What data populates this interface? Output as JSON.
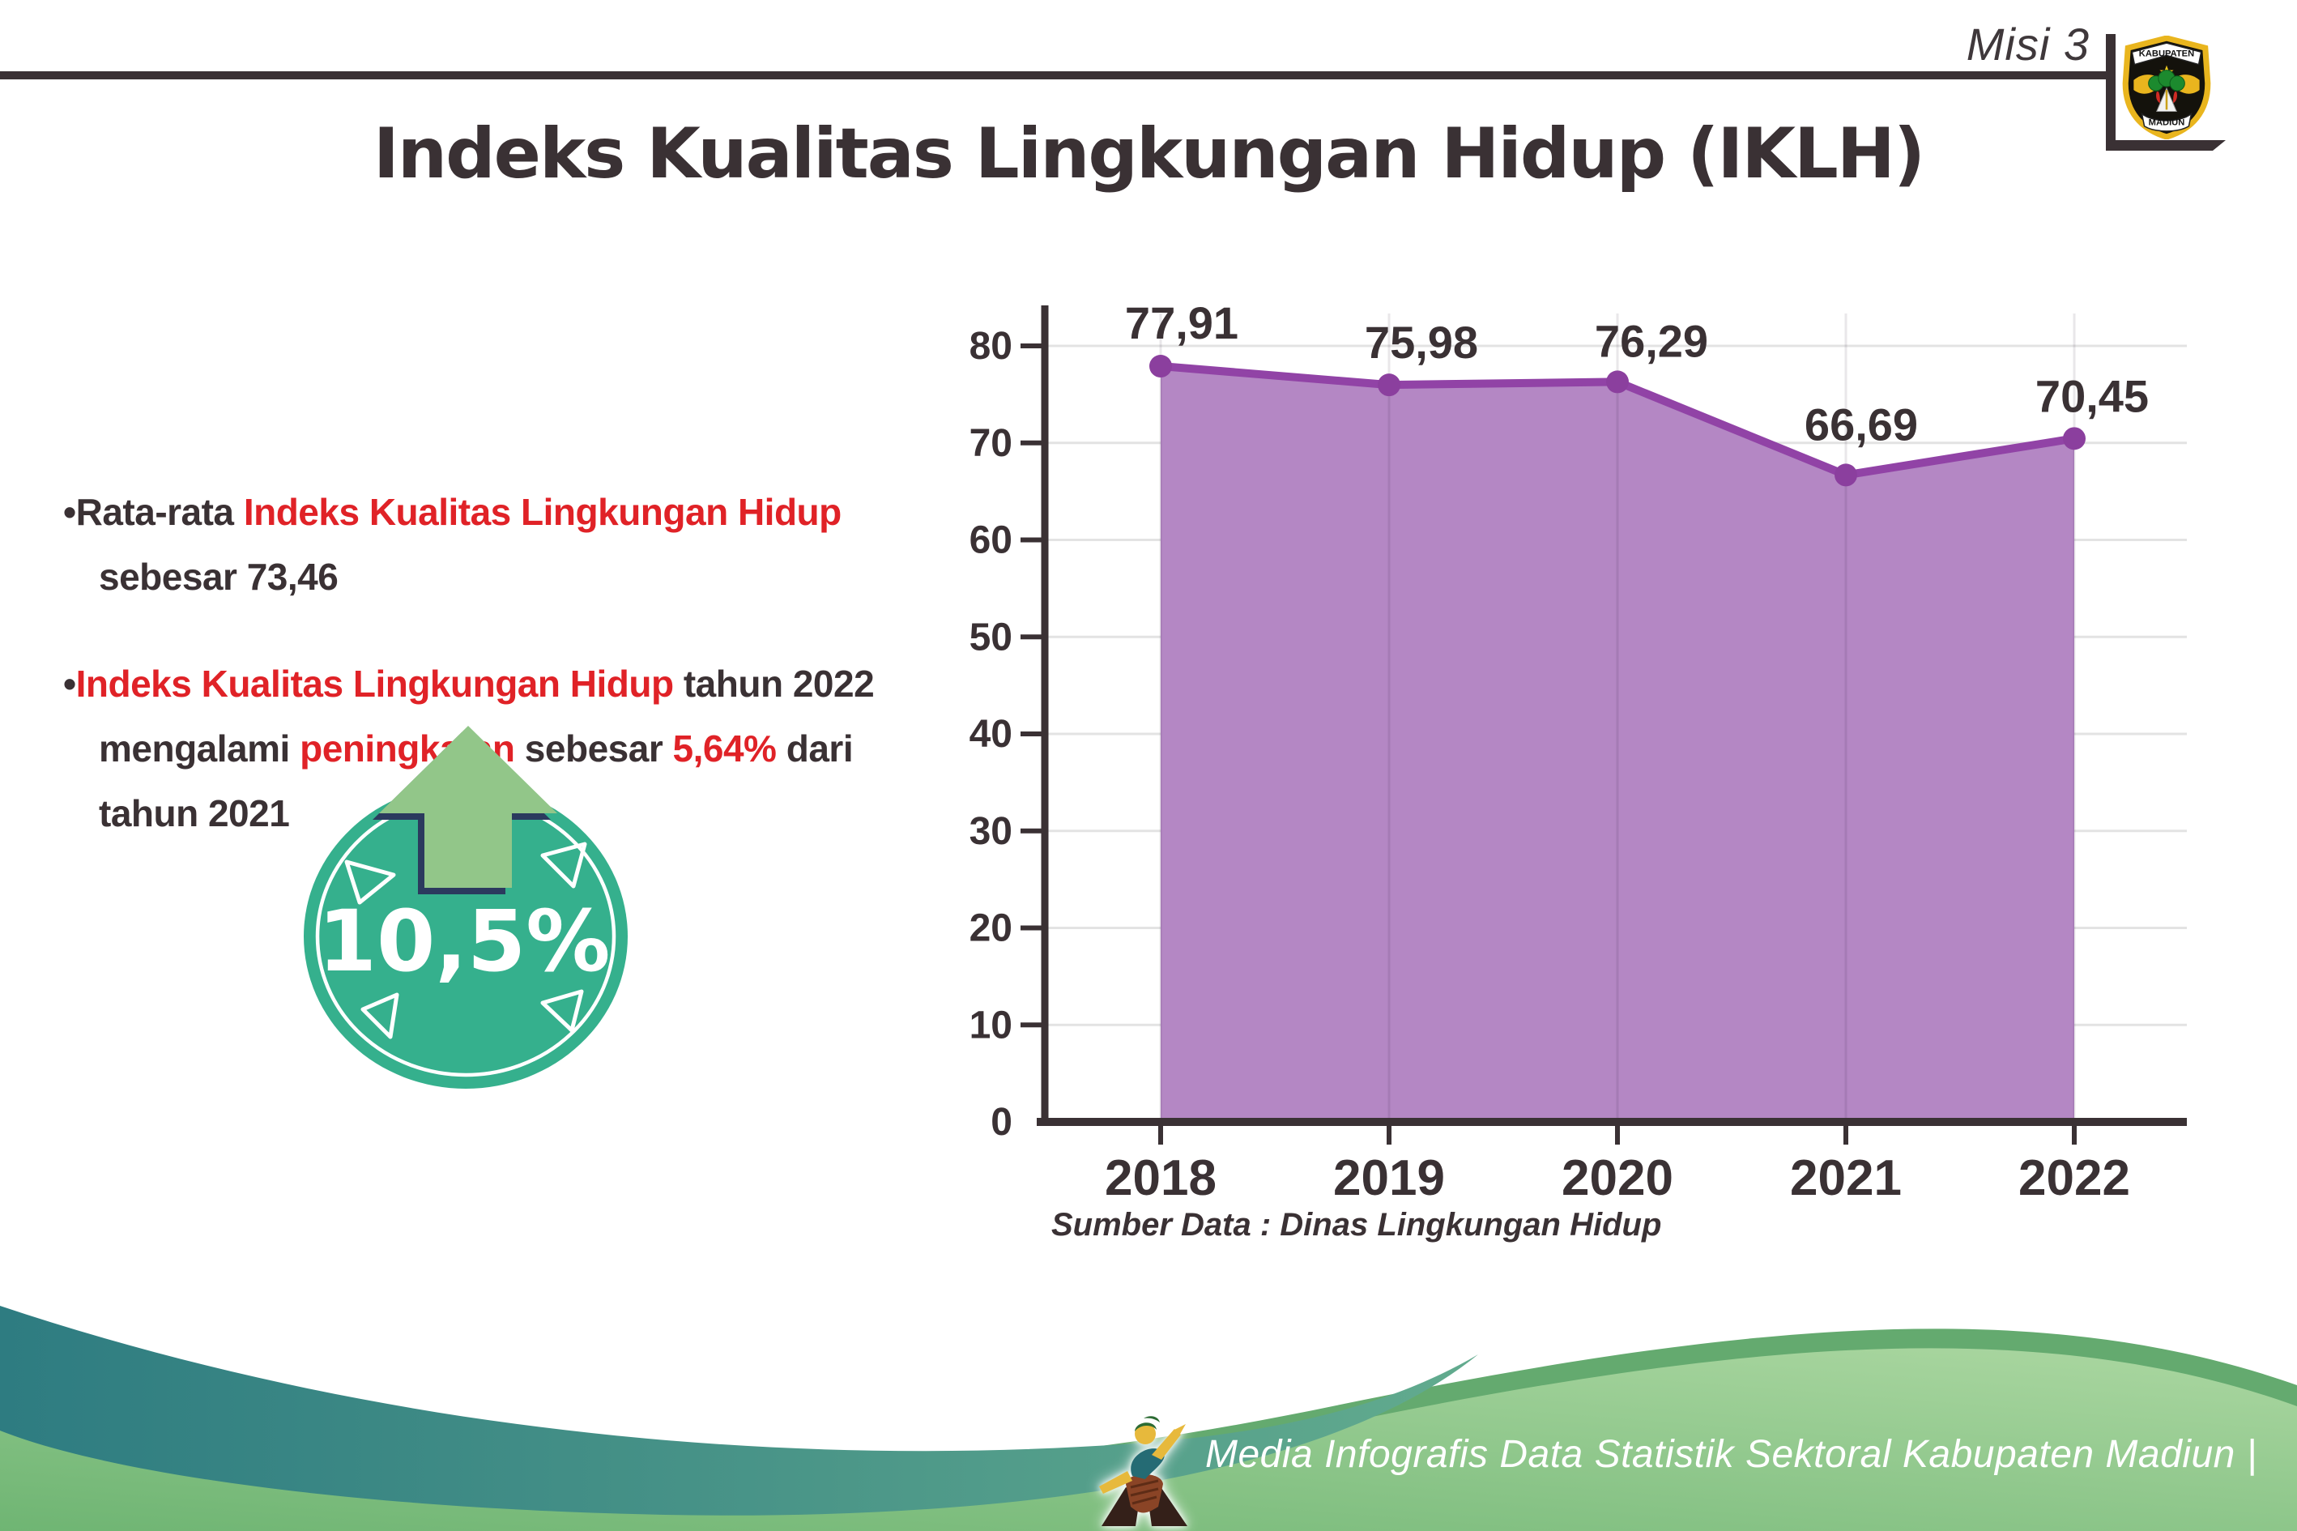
{
  "header": {
    "misi_label": "Misi 3",
    "title": "Indeks Kualitas Lingkungan Hidup (IKLH)",
    "logo": {
      "top_text": "KABUPATEN",
      "bottom_text": "MADIUN"
    }
  },
  "bullets": {
    "items": [
      {
        "lines": [
          [
            {
              "t": "•",
              "c": "dark"
            },
            {
              "t": "Rata-rata ",
              "c": "dark"
            },
            {
              "t": "Indeks Kualitas Lingkungan Hidup",
              "c": "red"
            }
          ],
          [
            {
              "t": "sebesar 73,46",
              "c": "dark"
            }
          ]
        ]
      },
      {
        "lines": [
          [
            {
              "t": "•",
              "c": "dark"
            },
            {
              "t": "Indeks Kualitas Lingkungan Hidup",
              "c": "red"
            },
            {
              "t": " tahun 2022",
              "c": "dark"
            }
          ],
          [
            {
              "t": "mengalami ",
              "c": "dark"
            },
            {
              "t": "peningkatan",
              "c": "red"
            },
            {
              "t": " sebesar ",
              "c": "dark"
            },
            {
              "t": "5,64%",
              "c": "red"
            },
            {
              "t": " dari",
              "c": "dark"
            }
          ],
          [
            {
              "t": "tahun 2021",
              "c": "dark"
            }
          ]
        ]
      }
    ]
  },
  "badge": {
    "value": "10,5%",
    "direction": "up"
  },
  "chart_data": {
    "type": "area",
    "categories": [
      "2018",
      "2019",
      "2020",
      "2021",
      "2022"
    ],
    "values": [
      77.91,
      75.98,
      76.29,
      66.69,
      70.45
    ],
    "value_labels": [
      "77,91",
      "75,98",
      "76,29",
      "66,69",
      "70,45"
    ],
    "ylim": [
      0,
      80
    ],
    "ytick_step": 10,
    "ytick_labels": [
      "0",
      "10",
      "20",
      "30",
      "40",
      "50",
      "60",
      "70",
      "80"
    ],
    "grid": true,
    "legend": "none",
    "title": "",
    "xlabel": "",
    "ylabel": "",
    "line_color": "#9143a6",
    "fill_color": "#b487c4",
    "marker_color": "#8b3f9e",
    "source_label": "Sumber Data : Dinas Lingkungan Hidup"
  },
  "footer": {
    "credit": "Media Infografis Data Statistik Sektoral Kabupaten Madiun |"
  },
  "colors": {
    "dark_text": "#3a3134",
    "red_text": "#e02227",
    "badge_teal": "#35b08d",
    "arrow_green": "#92c689",
    "arrow_outline_navy": "#2b3a5e",
    "footer_teal_dark": "#2e7c81",
    "footer_teal_light": "#62ab8e",
    "footer_green_dark": "#64aa6f",
    "footer_green_light": "#abd7a1"
  }
}
